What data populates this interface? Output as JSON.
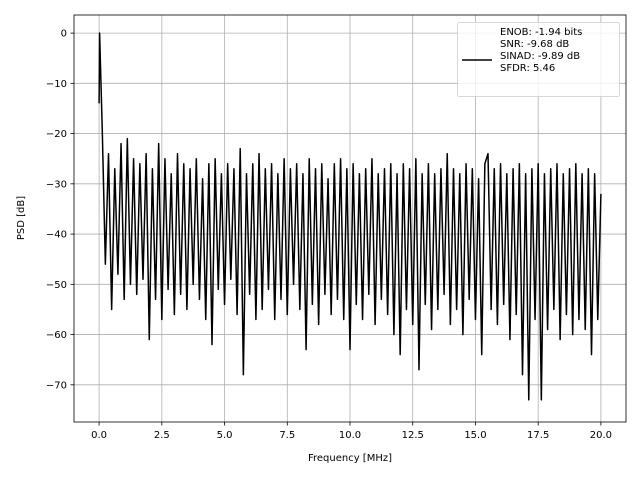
{
  "chart_data": {
    "type": "line",
    "x_label": "Frequency [MHz]",
    "y_label": "PSD [dB]",
    "x": [
      0,
      0.02,
      0.125,
      0.25,
      0.375,
      0.5,
      0.625,
      0.75,
      0.875,
      1.0,
      1.125,
      1.25,
      1.375,
      1.5,
      1.625,
      1.75,
      1.875,
      2.0,
      2.125,
      2.25,
      2.375,
      2.5,
      2.625,
      2.75,
      2.875,
      3.0,
      3.125,
      3.25,
      3.375,
      3.5,
      3.625,
      3.75,
      3.875,
      4.0,
      4.125,
      4.25,
      4.375,
      4.5,
      4.625,
      4.75,
      4.875,
      5.0,
      5.125,
      5.25,
      5.375,
      5.5,
      5.625,
      5.75,
      5.875,
      6.0,
      6.125,
      6.25,
      6.375,
      6.5,
      6.625,
      6.75,
      6.875,
      7.0,
      7.125,
      7.25,
      7.375,
      7.5,
      7.625,
      7.75,
      7.875,
      8.0,
      8.125,
      8.25,
      8.375,
      8.5,
      8.625,
      8.75,
      8.875,
      9.0,
      9.125,
      9.25,
      9.375,
      9.5,
      9.625,
      9.75,
      9.875,
      10.0,
      10.125,
      10.25,
      10.375,
      10.5,
      10.625,
      10.75,
      10.875,
      11.0,
      11.125,
      11.25,
      11.375,
      11.5,
      11.625,
      11.75,
      11.875,
      12.0,
      12.125,
      12.25,
      12.375,
      12.5,
      12.625,
      12.75,
      12.875,
      13.0,
      13.125,
      13.25,
      13.375,
      13.5,
      13.625,
      13.75,
      13.875,
      14.0,
      14.125,
      14.25,
      14.375,
      14.5,
      14.625,
      14.75,
      14.875,
      15.0,
      15.125,
      15.25,
      15.375,
      15.5,
      15.625,
      15.75,
      15.875,
      16.0,
      16.125,
      16.25,
      16.375,
      16.5,
      16.625,
      16.75,
      16.875,
      17.0,
      17.125,
      17.25,
      17.375,
      17.5,
      17.625,
      17.75,
      17.875,
      18.0,
      18.125,
      18.25,
      18.375,
      18.5,
      18.625,
      18.75,
      18.875,
      19.0,
      19.125,
      19.25,
      19.375,
      19.5,
      19.625,
      19.75,
      19.875,
      20.0
    ],
    "series": [
      {
        "name": "ENOB: -1.94 bits\nSNR: -9.68 dB\nSINAD: -9.89 dB\nSFDR: 5.46",
        "color": "#000000",
        "values": [
          -14,
          0,
          -19,
          -46,
          -24,
          -55,
          -27,
          -48,
          -22,
          -53,
          -21,
          -50,
          -25,
          -52,
          -26,
          -49,
          -24,
          -61,
          -27,
          -53,
          -22,
          -57,
          -25,
          -51,
          -28,
          -56,
          -24,
          -52,
          -26,
          -55,
          -27,
          -50,
          -25,
          -53,
          -29,
          -57,
          -26,
          -62,
          -25,
          -51,
          -28,
          -54,
          -26,
          -49,
          -27,
          -56,
          -23,
          -68,
          -28,
          -52,
          -26,
          -57,
          -24,
          -55,
          -27,
          -51,
          -26,
          -57,
          -28,
          -53,
          -25,
          -56,
          -27,
          -50,
          -26,
          -55,
          -28,
          -63,
          -25,
          -54,
          -27,
          -58,
          -26,
          -52,
          -29,
          -56,
          -26,
          -53,
          -25,
          -57,
          -27,
          -63,
          -26,
          -54,
          -28,
          -57,
          -27,
          -52,
          -25,
          -58,
          -28,
          -53,
          -27,
          -56,
          -26,
          -60,
          -28,
          -64,
          -26,
          -55,
          -27,
          -58,
          -25,
          -67,
          -28,
          -54,
          -26,
          -59,
          -28,
          -55,
          -27,
          -52,
          -24,
          -58,
          -27,
          -55,
          -28,
          -60,
          -26,
          -53,
          -27,
          -57,
          -29,
          -64,
          -26,
          -24,
          -55,
          -27,
          -58,
          -26,
          -54,
          -28,
          -61,
          -27,
          -56,
          -26,
          -68,
          -28,
          -73,
          -27,
          -57,
          -26,
          -73,
          -28,
          -59,
          -27,
          -55,
          -26,
          -61,
          -28,
          -56,
          -27,
          -60,
          -26,
          -57,
          -28,
          -59,
          -27,
          -64,
          -28,
          -57,
          -32
        ]
      }
    ],
    "xlim": [
      -1.0,
      21.0
    ],
    "ylim": [
      -77.4,
      3.6
    ],
    "xticks": [
      {
        "value": 0,
        "label": "0.0"
      },
      2.5,
      {
        "value": 5,
        "label": "5.0"
      },
      7.5,
      {
        "value": 10,
        "label": "10.0"
      },
      12.5,
      {
        "value": 15,
        "label": "15.0"
      },
      17.5,
      {
        "value": 20,
        "label": "20.0"
      }
    ],
    "yticks": [
      0,
      {
        "value": -10,
        "label": "−10"
      },
      {
        "value": -20,
        "label": "−20"
      },
      {
        "value": -30,
        "label": "−30"
      },
      {
        "value": -40,
        "label": "−40"
      },
      {
        "value": -50,
        "label": "−50"
      },
      {
        "value": -60,
        "label": "−60"
      },
      {
        "value": -70,
        "label": "−70"
      }
    ],
    "grid": true,
    "legend": "upper right"
  }
}
